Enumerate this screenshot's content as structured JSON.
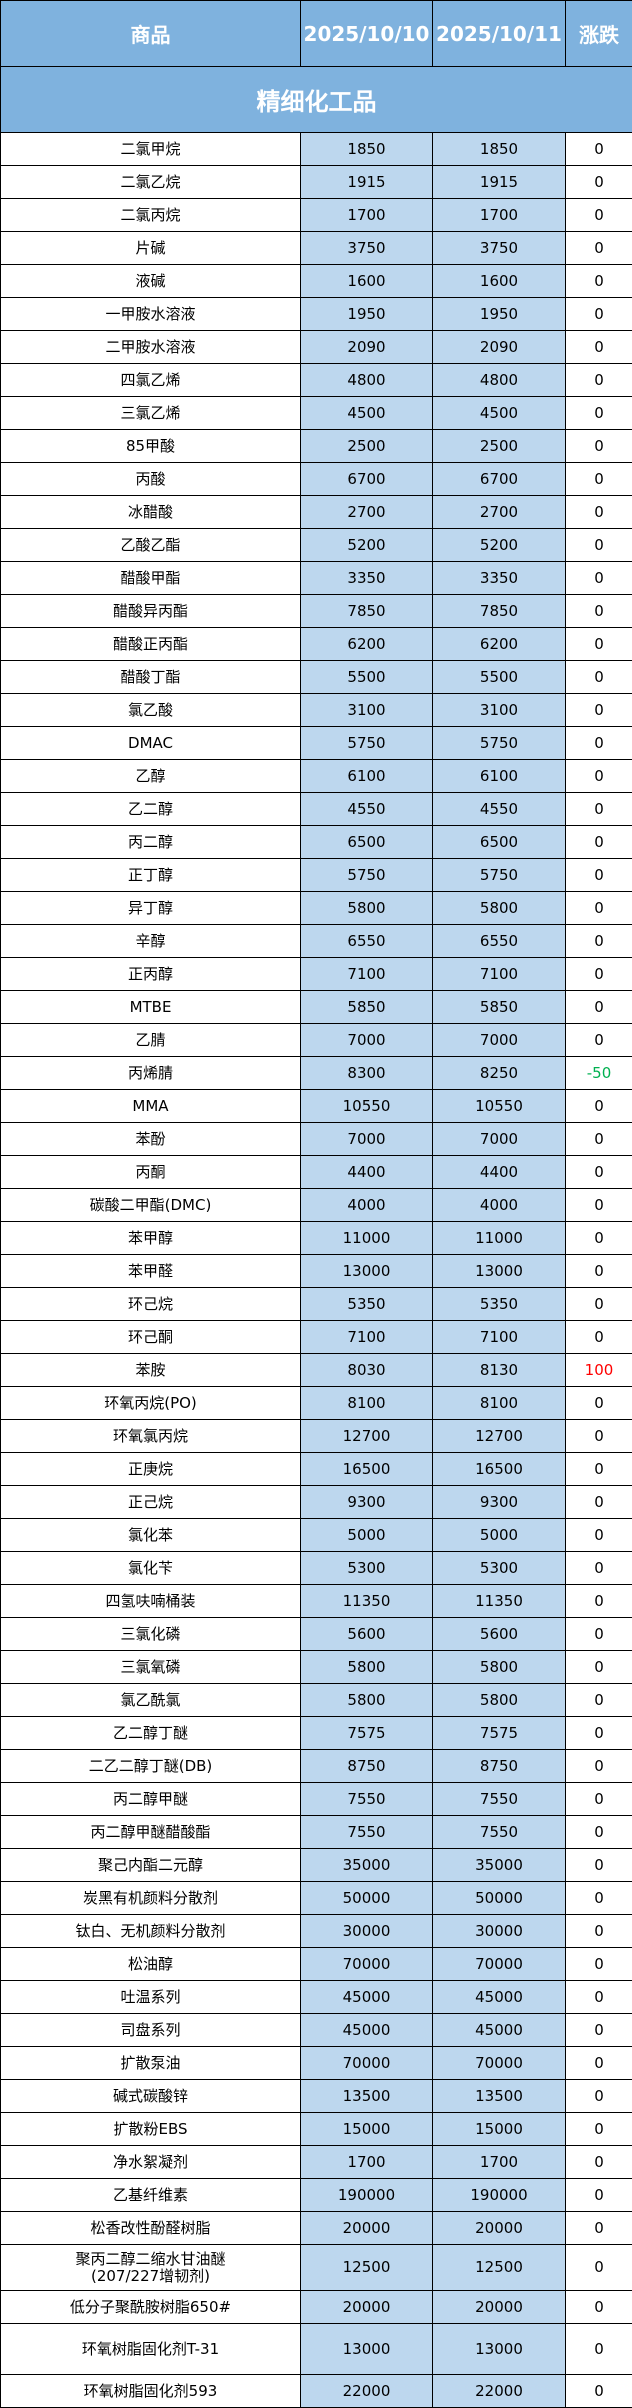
{
  "header": {
    "product": "商品",
    "date1": "2025/10/10",
    "date2": "2025/10/11",
    "change": "涨跌"
  },
  "section": "精细化工品",
  "colors": {
    "header_bg": "#7fb2de",
    "value_bg": "#bdd7ee",
    "up": "#ff0000",
    "down": "#00b050"
  },
  "rows": [
    [
      "二氯甲烷",
      "1850",
      "1850",
      "0"
    ],
    [
      "二氯乙烷",
      "1915",
      "1915",
      "0"
    ],
    [
      "二氯丙烷",
      "1700",
      "1700",
      "0"
    ],
    [
      "片碱",
      "3750",
      "3750",
      "0"
    ],
    [
      "液碱",
      "1600",
      "1600",
      "0"
    ],
    [
      "一甲胺水溶液",
      "1950",
      "1950",
      "0"
    ],
    [
      "二甲胺水溶液",
      "2090",
      "2090",
      "0"
    ],
    [
      "四氯乙烯",
      "4800",
      "4800",
      "0"
    ],
    [
      "三氯乙烯",
      "4500",
      "4500",
      "0"
    ],
    [
      "85甲酸",
      "2500",
      "2500",
      "0"
    ],
    [
      "丙酸",
      "6700",
      "6700",
      "0"
    ],
    [
      "冰醋酸",
      "2700",
      "2700",
      "0"
    ],
    [
      "乙酸乙酯",
      "5200",
      "5200",
      "0"
    ],
    [
      "醋酸甲酯",
      "3350",
      "3350",
      "0"
    ],
    [
      "醋酸异丙酯",
      "7850",
      "7850",
      "0"
    ],
    [
      "醋酸正丙酯",
      "6200",
      "6200",
      "0"
    ],
    [
      "醋酸丁酯",
      "5500",
      "5500",
      "0"
    ],
    [
      "氯乙酸",
      "3100",
      "3100",
      "0"
    ],
    [
      "DMAC",
      "5750",
      "5750",
      "0"
    ],
    [
      "乙醇",
      "6100",
      "6100",
      "0"
    ],
    [
      "乙二醇",
      "4550",
      "4550",
      "0"
    ],
    [
      "丙二醇",
      "6500",
      "6500",
      "0"
    ],
    [
      "正丁醇",
      "5750",
      "5750",
      "0"
    ],
    [
      "异丁醇",
      "5800",
      "5800",
      "0"
    ],
    [
      "辛醇",
      "6550",
      "6550",
      "0"
    ],
    [
      "正丙醇",
      "7100",
      "7100",
      "0"
    ],
    [
      "MTBE",
      "5850",
      "5850",
      "0"
    ],
    [
      "乙腈",
      "7000",
      "7000",
      "0"
    ],
    [
      "丙烯腈",
      "8300",
      "8250",
      "-50"
    ],
    [
      "MMA",
      "10550",
      "10550",
      "0"
    ],
    [
      "苯酚",
      "7000",
      "7000",
      "0"
    ],
    [
      "丙酮",
      "4400",
      "4400",
      "0"
    ],
    [
      "碳酸二甲酯(DMC)",
      "4000",
      "4000",
      "0"
    ],
    [
      "苯甲醇",
      "11000",
      "11000",
      "0"
    ],
    [
      "苯甲醛",
      "13000",
      "13000",
      "0"
    ],
    [
      "环己烷",
      "5350",
      "5350",
      "0"
    ],
    [
      "环己酮",
      "7100",
      "7100",
      "0"
    ],
    [
      "苯胺",
      "8030",
      "8130",
      "100"
    ],
    [
      "环氧丙烷(PO)",
      "8100",
      "8100",
      "0"
    ],
    [
      "环氧氯丙烷",
      "12700",
      "12700",
      "0"
    ],
    [
      "正庚烷",
      "16500",
      "16500",
      "0"
    ],
    [
      "正己烷",
      "9300",
      "9300",
      "0"
    ],
    [
      "氯化苯",
      "5000",
      "5000",
      "0"
    ],
    [
      "氯化苄",
      "5300",
      "5300",
      "0"
    ],
    [
      "四氢呋喃桶装",
      "11350",
      "11350",
      "0"
    ],
    [
      "三氯化磷",
      "5600",
      "5600",
      "0"
    ],
    [
      "三氯氧磷",
      "5800",
      "5800",
      "0"
    ],
    [
      "氯乙酰氯",
      "5800",
      "5800",
      "0"
    ],
    [
      "乙二醇丁醚",
      "7575",
      "7575",
      "0"
    ],
    [
      "二乙二醇丁醚(DB)",
      "8750",
      "8750",
      "0"
    ],
    [
      "丙二醇甲醚",
      "7550",
      "7550",
      "0"
    ],
    [
      "丙二醇甲醚醋酸酯",
      "7550",
      "7550",
      "0"
    ],
    [
      "聚己内酯二元醇",
      "35000",
      "35000",
      "0"
    ],
    [
      "炭黑有机颜料分散剂",
      "50000",
      "50000",
      "0"
    ],
    [
      "钛白、无机颜料分散剂",
      "30000",
      "30000",
      "0"
    ],
    [
      "松油醇",
      "70000",
      "70000",
      "0"
    ],
    [
      "吐温系列",
      "45000",
      "45000",
      "0"
    ],
    [
      "司盘系列",
      "45000",
      "45000",
      "0"
    ],
    [
      "扩散泵油",
      "70000",
      "70000",
      "0"
    ],
    [
      "碱式碳酸锌",
      "13500",
      "13500",
      "0"
    ],
    [
      "扩散粉EBS",
      "15000",
      "15000",
      "0"
    ],
    [
      "净水絮凝剂",
      "1700",
      "1700",
      "0"
    ],
    [
      "乙基纤维素",
      "190000",
      "190000",
      "0"
    ],
    [
      "松香改性酚醛树脂",
      "20000",
      "20000",
      "0"
    ],
    [
      "聚丙二醇二缩水甘油醚(207/227增韧剂)",
      "12500",
      "12500",
      "0"
    ],
    [
      "低分子聚酰胺树脂650#",
      "20000",
      "20000",
      "0"
    ],
    [
      "环氧树脂固化剂T-31",
      "13000",
      "13000",
      "0"
    ],
    [
      "环氧树脂固化剂593",
      "22000",
      "22000",
      "0"
    ]
  ]
}
